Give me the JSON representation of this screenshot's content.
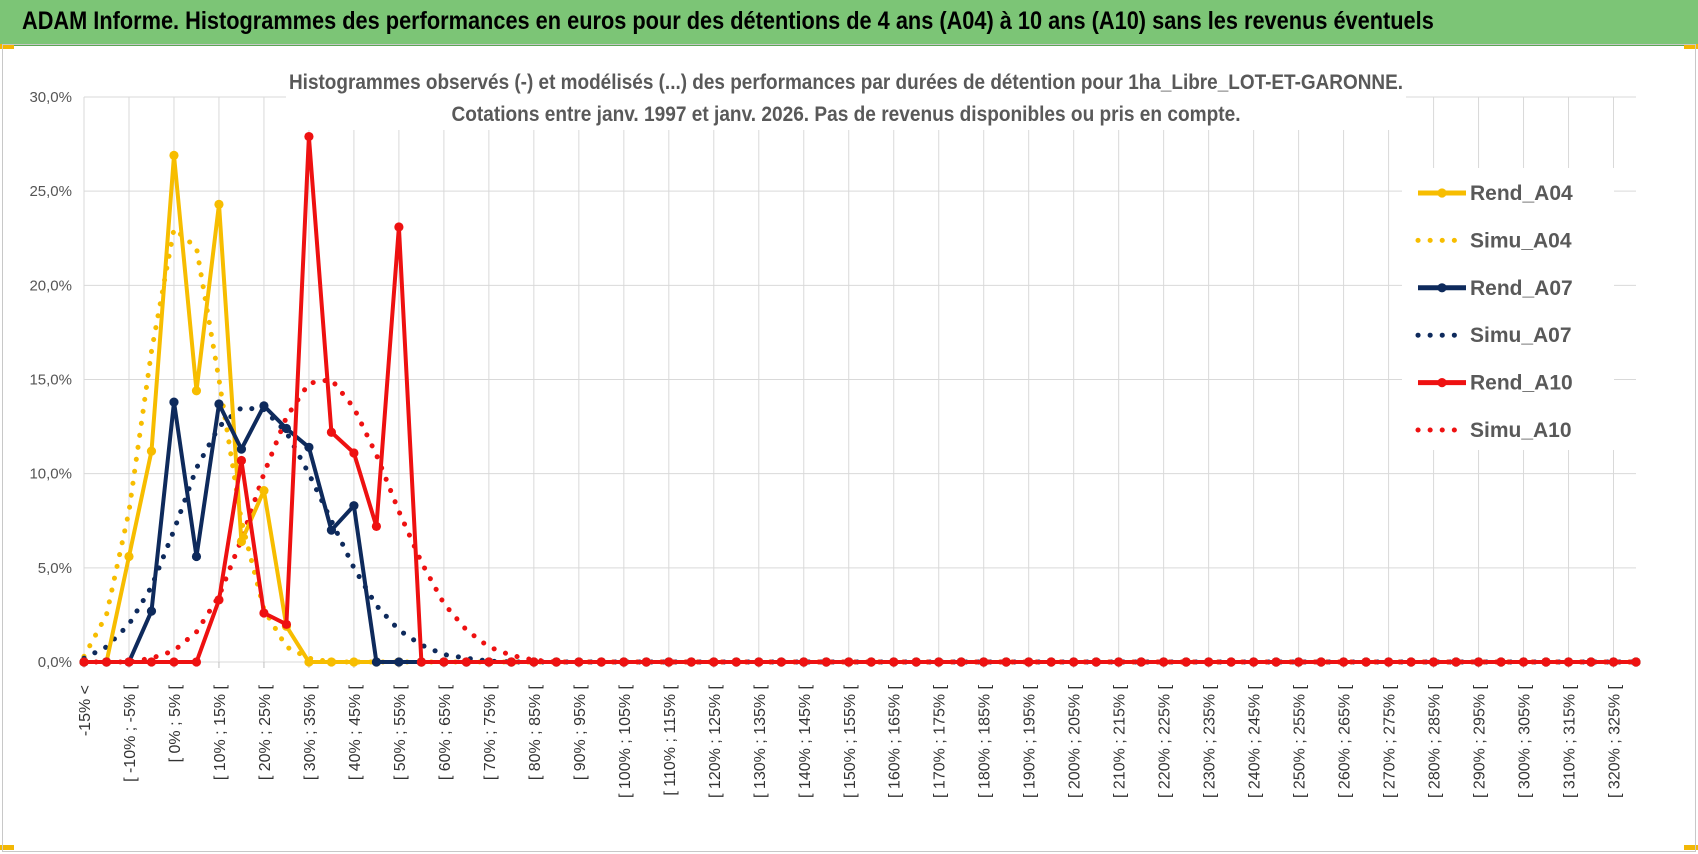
{
  "banner": {
    "title": "ADAM Informe. Histogrammes des performances en euros pour des détentions de 4 ans (A04) à 10 ans (A10) sans les revenus éventuels"
  },
  "colors": {
    "banner": "#7cc576",
    "A04": "#f7bd00",
    "A07": "#0e2a5c",
    "A10": "#ee1111",
    "grid": "#d9d9d9"
  },
  "chart_data": {
    "type": "line",
    "title_lines": [
      "Histogrammes observés (-) et modélisés (...) des performances par durées de détention pour 1ha_Libre_LOT-ET-GARONNE.",
      "Cotations entre janv. 1997 et janv. 2026. Pas de revenus disponibles ou pris en compte."
    ],
    "y_ticks": [
      "0,0%",
      "5,0%",
      "10,0%",
      "15,0%",
      "20,0%",
      "25,0%",
      "30,0%"
    ],
    "ylim": [
      0,
      30
    ],
    "grid": true,
    "legend_position": "right",
    "x_labels": [
      "-15% <",
      "[ -10% ; -5% [",
      "[ 0% ; 5% [",
      "[ 10% ; 15% [",
      "[ 20% ; 25% [",
      "[ 30% ; 35% [",
      "[ 40% ; 45% [",
      "[ 50% ; 55% [",
      "[ 60% ; 65% [",
      "[ 70% ; 75% [",
      "[ 80% ; 85% [",
      "[ 90% ; 95% [",
      "[ 100% ; 105% [",
      "[ 110% ; 115% [",
      "[ 120% ; 125% [",
      "[ 130% ; 135% [",
      "[ 140% ; 145% [",
      "[ 150% ; 155% [",
      "[ 160% ; 165% [",
      "[ 170% ; 175% [",
      "[ 180% ; 185% [",
      "[ 190% ; 195% [",
      "[ 200% ; 205% [",
      "[ 210% ; 215% [",
      "[ 220% ; 225% [",
      "[ 230% ; 235% [",
      "[ 240% ; 245% [",
      "[ 250% ; 255% [",
      "[ 260% ; 265% [",
      "[ 270% ; 275% [",
      "[ 280% ; 285% [",
      "[ 290% ; 295% [",
      "[ 300% ; 305% [",
      "[ 310% ; 315% [",
      "[ 320% ; 325% ["
    ],
    "series": [
      {
        "name": "Rend_A04",
        "style": "solid",
        "markers": true,
        "color": "#f7bd00",
        "values": [
          0,
          0,
          5.6,
          11.2,
          26.9,
          14.4,
          24.3,
          6.4,
          9.1,
          1.9,
          0,
          0,
          0,
          0,
          0,
          0,
          0,
          0,
          0,
          0,
          0,
          0,
          0,
          0,
          0,
          0,
          0,
          0,
          0,
          0,
          0,
          0,
          0,
          0,
          0,
          0,
          0,
          0,
          0,
          0,
          0,
          0,
          0,
          0,
          0,
          0,
          0,
          0,
          0,
          0,
          0,
          0,
          0,
          0,
          0,
          0,
          0,
          0,
          0,
          0,
          0,
          0,
          0,
          0,
          0,
          0,
          0,
          0,
          0,
          0
        ]
      },
      {
        "name": "Simu_A04",
        "style": "dotted",
        "markers": false,
        "color": "#f7bd00",
        "values": [
          0.3,
          2.5,
          8,
          16.5,
          23,
          22,
          15,
          7.5,
          2.8,
          0.8,
          0.2,
          0,
          0,
          0,
          0,
          0,
          0,
          0,
          0,
          0,
          0,
          0,
          0,
          0,
          0,
          0,
          0,
          0,
          0,
          0,
          0,
          0,
          0,
          0,
          0,
          0,
          0,
          0,
          0,
          0,
          0,
          0,
          0,
          0,
          0,
          0,
          0,
          0,
          0,
          0,
          0,
          0,
          0,
          0,
          0,
          0,
          0,
          0,
          0,
          0,
          0,
          0,
          0,
          0,
          0,
          0,
          0,
          0,
          0,
          0
        ]
      },
      {
        "name": "Rend_A07",
        "style": "solid",
        "markers": true,
        "color": "#0e2a5c",
        "values": [
          0,
          0,
          0,
          2.7,
          13.8,
          5.6,
          13.7,
          11.3,
          13.6,
          12.4,
          11.4,
          7,
          8.3,
          0,
          0,
          0,
          0,
          0,
          0,
          0,
          0,
          0,
          0,
          0,
          0,
          0,
          0,
          0,
          0,
          0,
          0,
          0,
          0,
          0,
          0,
          0,
          0,
          0,
          0,
          0,
          0,
          0,
          0,
          0,
          0,
          0,
          0,
          0,
          0,
          0,
          0,
          0,
          0,
          0,
          0,
          0,
          0,
          0,
          0,
          0,
          0,
          0,
          0,
          0,
          0,
          0,
          0,
          0,
          0,
          0
        ]
      },
      {
        "name": "Simu_A07",
        "style": "dotted",
        "markers": false,
        "color": "#0e2a5c",
        "values": [
          0.2,
          0.8,
          2,
          4,
          7,
          10.3,
          12.5,
          13.5,
          13.4,
          12.2,
          10,
          7.5,
          5,
          3,
          1.7,
          0.9,
          0.4,
          0.2,
          0.05,
          0,
          0,
          0,
          0,
          0,
          0,
          0,
          0,
          0,
          0,
          0,
          0,
          0,
          0,
          0,
          0,
          0,
          0,
          0,
          0,
          0,
          0,
          0,
          0,
          0,
          0,
          0,
          0,
          0,
          0,
          0,
          0,
          0,
          0,
          0,
          0,
          0,
          0,
          0,
          0,
          0,
          0,
          0,
          0,
          0,
          0,
          0,
          0,
          0,
          0,
          0
        ]
      },
      {
        "name": "Rend_A10",
        "style": "solid",
        "markers": true,
        "color": "#ee1111",
        "values": [
          0,
          0,
          0,
          0,
          0,
          0,
          3.3,
          10.7,
          2.6,
          2,
          27.9,
          12.2,
          11.1,
          7.2,
          23.1,
          0,
          0,
          0,
          0,
          0,
          0,
          0,
          0,
          0,
          0,
          0,
          0,
          0,
          0,
          0,
          0,
          0,
          0,
          0,
          0,
          0,
          0,
          0,
          0,
          0,
          0,
          0,
          0,
          0,
          0,
          0,
          0,
          0,
          0,
          0,
          0,
          0,
          0,
          0,
          0,
          0,
          0,
          0,
          0,
          0,
          0,
          0,
          0,
          0,
          0,
          0,
          0,
          0,
          0,
          0
        ]
      },
      {
        "name": "Simu_A10",
        "style": "dotted",
        "markers": false,
        "color": "#ee1111",
        "values": [
          0,
          0,
          0,
          0.2,
          0.6,
          1.6,
          3.5,
          6.5,
          10,
          13,
          14.8,
          15,
          13.5,
          11,
          8,
          5.3,
          3.1,
          1.7,
          0.8,
          0.35,
          0.1,
          0,
          0,
          0,
          0,
          0,
          0,
          0,
          0,
          0,
          0,
          0,
          0,
          0,
          0,
          0,
          0,
          0,
          0,
          0,
          0,
          0,
          0,
          0,
          0,
          0,
          0,
          0,
          0,
          0,
          0,
          0,
          0,
          0,
          0,
          0,
          0,
          0,
          0,
          0,
          0,
          0,
          0,
          0,
          0,
          0,
          0,
          0,
          0,
          0
        ]
      }
    ]
  }
}
